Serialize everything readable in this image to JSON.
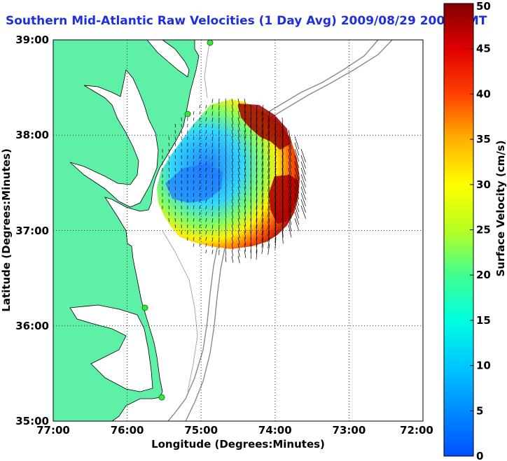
{
  "title": "Southern Mid-Atlantic Raw Velocities (1 Day Avg) 2009/08/29 2000 GMT",
  "map": {
    "xlabel": "Longitude (Degrees:Minutes)",
    "ylabel": "Latitude (Degrees:Minutes)",
    "x_ticks": [
      "77:00",
      "76:00",
      "75:00",
      "74:00",
      "73:00",
      "72:00"
    ],
    "y_ticks": [
      "39:00",
      "38:00",
      "37:00",
      "36:00",
      "35:00"
    ],
    "land_color": "#5ff0a8",
    "water_color": "#ffffff",
    "grid": "dotted"
  },
  "colorbar": {
    "label": "Surface Velocity (cm/s)",
    "ticks": [
      "50",
      "45",
      "40",
      "35",
      "30",
      "25",
      "20",
      "15",
      "10",
      "5",
      "0"
    ],
    "range": [
      0,
      50
    ]
  },
  "stations": [
    {
      "name": "station-north"
    },
    {
      "name": "station-delmarva"
    },
    {
      "name": "station-outer-banks-north"
    },
    {
      "name": "station-hatteras"
    }
  ]
}
